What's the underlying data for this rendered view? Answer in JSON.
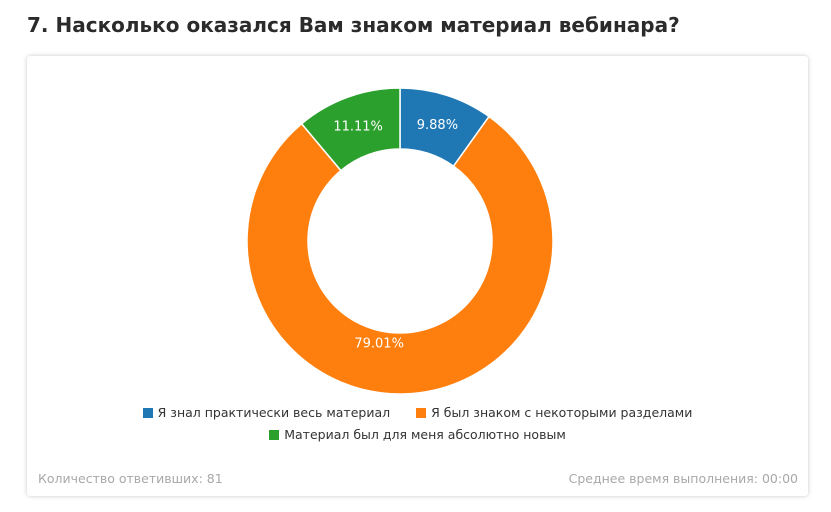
{
  "question": {
    "title": "7. Насколько оказался Вам знаком материал вебинара?"
  },
  "chart_data": {
    "type": "pie",
    "variant": "donut",
    "categories": [
      "Я знал практически весь материал",
      "Я был знаком с некоторыми разделами",
      "Материал был для меня абсолютно новым"
    ],
    "values": [
      9.88,
      79.01,
      11.11
    ],
    "labels": [
      "9.88%",
      "79.01%",
      "11.11%"
    ],
    "colors": [
      "#1f77b4",
      "#ff7f0e",
      "#2ca02c"
    ],
    "title": "",
    "legend_position": "bottom"
  },
  "footer": {
    "respondents": "Количество ответивших: 81",
    "avg_time": "Среднее время выполнения: 00:00"
  }
}
